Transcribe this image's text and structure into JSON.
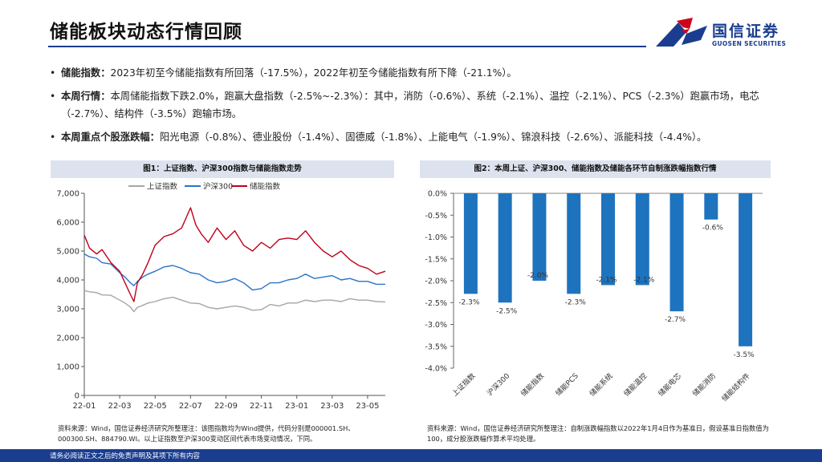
{
  "header": {
    "title": "储能板块动态行情回顾",
    "logo_cn": "国信证券",
    "logo_en": "GUOSEN SECURITIES"
  },
  "bullets": [
    {
      "label": "储能指数：",
      "text": "2023年初至今储能指数有所回落（-17.5%），2022年初至今储能指数有所下降（-21.1%）。"
    },
    {
      "label": "本周行情：",
      "text": "本周储能指数下跌2.0%，跑赢大盘指数（-2.5%~-2.3%）：其中，消防（-0.6%）、系统（-2.1%）、温控（-2.1%）、PCS（-2.3%）跑赢市场，电芯（-2.7%）、结构件（-3.5%）跑输市场。"
    },
    {
      "label": "本周重点个股涨跌幅：",
      "text": "阳光电源（-0.8%）、德业股份（-1.4%）、固德威（-1.8%）、上能电气（-1.9%）、锦浪科技（-2.6%）、派能科技（-4.4%）。"
    }
  ],
  "figure1": {
    "title": "图1：上证指数、沪深300指数与储能指数走势",
    "source": "资料来源：Wind，国信证券经济研究所整理注：该图指数均为Wind提供，代码分别是000001.SH、000300.SH、884790.WI。以上证指数至沪深300变动区间代表市场变动情况，下同。"
  },
  "figure2": {
    "title": "图2：本周上证、沪深300、储能指数及储能各环节自制涨跌幅指数行情",
    "source": "资料来源：Wind，国信证券经济研究所整理注：自制涨跌幅指数以2022年1月4日作为基准日，假设基准日指数值为100，成分股涨跌幅作算术平均处理。"
  },
  "footer": {
    "disclaimer": "请务必阅读正文之后的免责声明及其项下所有内容"
  },
  "chart_data": [
    {
      "type": "line",
      "title": "图1：上证指数、沪深300指数与储能指数走势",
      "x_ticks": [
        "22-01",
        "22-03",
        "22-05",
        "22-07",
        "22-09",
        "22-11",
        "23-01",
        "23-03",
        "23-05"
      ],
      "ylim": [
        0,
        7000
      ],
      "y_ticks": [
        0,
        1000,
        2000,
        3000,
        4000,
        5000,
        6000,
        7000
      ],
      "y_tick_labels": [
        "0",
        "1,000",
        "2,000",
        "3,000",
        "4,000",
        "5,000",
        "6,000",
        "7,000"
      ],
      "legend_position": "top",
      "series": [
        {
          "name": "上证指数",
          "color": "#a6a6a6",
          "x": [
            0,
            0.3,
            0.7,
            1,
            1.5,
            2,
            2.3,
            2.6,
            2.8,
            3,
            3.3,
            3.6,
            4,
            4.5,
            5,
            5.5,
            6,
            6.5,
            7,
            7.5,
            8,
            8.5,
            9,
            9.5,
            10,
            10.5,
            11,
            11.5,
            12,
            12.5,
            13,
            13.5,
            14,
            14.5,
            15,
            15.5,
            16,
            16.5,
            17
          ],
          "values": [
            3630,
            3590,
            3560,
            3480,
            3470,
            3300,
            3200,
            3060,
            2900,
            3050,
            3120,
            3200,
            3250,
            3350,
            3400,
            3300,
            3200,
            3180,
            3050,
            3000,
            3050,
            3100,
            3050,
            2950,
            2970,
            3150,
            3100,
            3200,
            3200,
            3300,
            3250,
            3300,
            3300,
            3250,
            3350,
            3300,
            3300,
            3250,
            3240
          ]
        },
        {
          "name": "沪深300",
          "color": "#2a74c6",
          "x": [
            0,
            0.3,
            0.7,
            1,
            1.5,
            2,
            2.3,
            2.6,
            2.8,
            3,
            3.3,
            3.6,
            4,
            4.5,
            5,
            5.5,
            6,
            6.5,
            7,
            7.5,
            8,
            8.5,
            9,
            9.5,
            10,
            10.5,
            11,
            11.5,
            12,
            12.5,
            13,
            13.5,
            14,
            14.5,
            15,
            15.5,
            16,
            16.5,
            17
          ],
          "values": [
            4900,
            4800,
            4750,
            4600,
            4550,
            4250,
            4100,
            3900,
            3800,
            3950,
            4100,
            4200,
            4300,
            4450,
            4500,
            4400,
            4250,
            4200,
            4000,
            3900,
            3950,
            4050,
            3900,
            3650,
            3700,
            3900,
            3900,
            4000,
            4050,
            4200,
            4050,
            4100,
            4150,
            4000,
            4050,
            3950,
            3950,
            3850,
            3850
          ]
        },
        {
          "name": "储能指数",
          "color": "#c0001a",
          "x": [
            0,
            0.3,
            0.7,
            1,
            1.5,
            2,
            2.3,
            2.6,
            2.8,
            3,
            3.3,
            3.6,
            4,
            4.5,
            5,
            5.5,
            6,
            6.3,
            6.6,
            7,
            7.5,
            8,
            8.5,
            9,
            9.5,
            10,
            10.5,
            11,
            11.5,
            12,
            12.5,
            13,
            13.5,
            14,
            14.5,
            15,
            15.5,
            16,
            16.5,
            17
          ],
          "values": [
            5550,
            5100,
            4900,
            5050,
            4600,
            4300,
            3900,
            3500,
            3250,
            3900,
            4200,
            4600,
            5200,
            5500,
            5600,
            5800,
            6500,
            5900,
            5600,
            5300,
            5800,
            5400,
            5700,
            5200,
            5000,
            5300,
            5100,
            5400,
            5450,
            5400,
            5700,
            5300,
            5000,
            4800,
            5000,
            4700,
            4500,
            4400,
            4200,
            4300
          ]
        }
      ]
    },
    {
      "type": "bar",
      "title": "图2：本周上证、沪深300、储能指数及储能各环节自制涨跌幅指数行情",
      "categories": [
        "上证指数",
        "沪深300",
        "储能指数",
        "储能PCS",
        "储能系统",
        "储能温控",
        "储能电芯",
        "储能消防",
        "储能结构件"
      ],
      "values": [
        -2.3,
        -2.5,
        -2.0,
        -2.3,
        -2.1,
        -2.1,
        -2.7,
        -0.6,
        -3.5
      ],
      "value_labels": [
        "-2.3%",
        "-2.5%",
        "-2.0%",
        "-2.3%",
        "-2.1%",
        "-2.1%",
        "-2.7%",
        "-0.6%",
        "-3.5%"
      ],
      "ylim": [
        -4.0,
        0.0
      ],
      "y_ticks": [
        0,
        -0.5,
        -1.0,
        -1.5,
        -2.0,
        -2.5,
        -3.0,
        -3.5,
        -4.0
      ],
      "y_tick_labels": [
        "0.0%",
        "-0.5%",
        "-1.0%",
        "-1.5%",
        "-2.0%",
        "-2.5%",
        "-3.0%",
        "-3.5%",
        "-4.0%"
      ],
      "color": "#1e73be"
    }
  ]
}
